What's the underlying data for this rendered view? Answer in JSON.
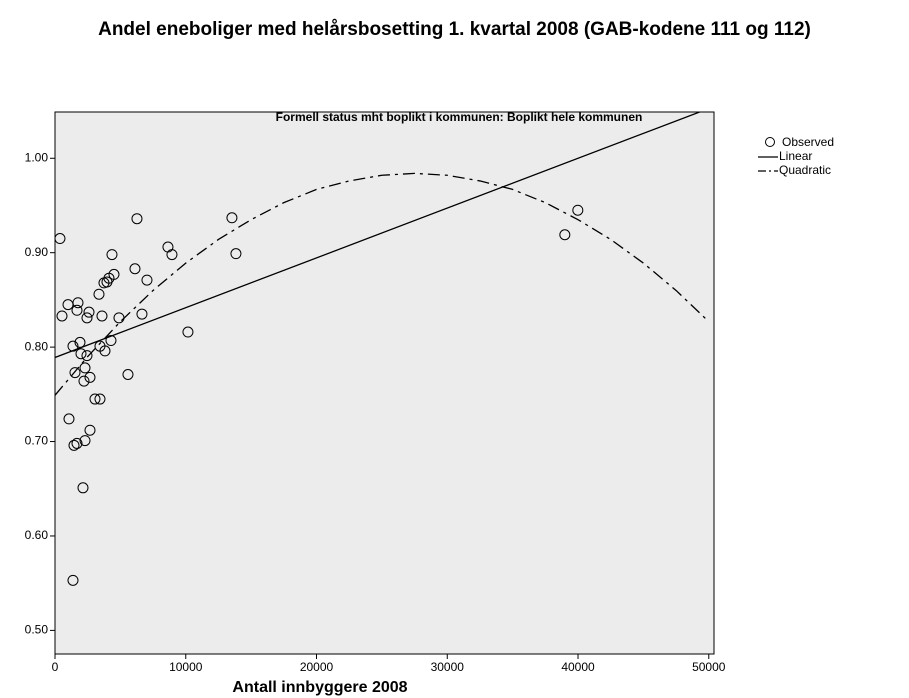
{
  "chart_data": {
    "type": "scatter",
    "title": "Andel eneboliger med helårsbosetting 1. kvartal 2008 (GAB-kodene 111 og 112)",
    "subtitle": "Formell status mht boplikt i kommunen: Boplikt hele kommunen",
    "x_label": "Antall innbyggere 2008",
    "xlim": [
      0,
      50400
    ],
    "ylim": [
      0.475,
      1.049
    ],
    "xticks": [
      0,
      10000,
      20000,
      30000,
      40000,
      50000
    ],
    "yticks": [
      {
        "value": 0.5,
        "label": "0.50"
      },
      {
        "value": 0.6,
        "label": "0.60"
      },
      {
        "value": 0.7,
        "label": "0.70"
      },
      {
        "value": 0.8,
        "label": "0.80"
      },
      {
        "value": 0.9,
        "label": "0.90"
      },
      {
        "value": 1.0,
        "label": "1.00"
      }
    ],
    "background": "#ececec",
    "series": [
      {
        "name": "Observed",
        "type": "scatter",
        "color": "#000000",
        "x": [
          380,
          535,
          994,
          1070,
          1376,
          1529,
          1453,
          1682,
          1758,
          1682,
          1911,
          1988,
          1376,
          2141,
          2217,
          2294,
          2294,
          2447,
          2447,
          2600,
          2676,
          2676,
          3058,
          3364,
          3440,
          3440,
          3593,
          3746,
          3823,
          3976,
          4128,
          4281,
          4358,
          4511,
          4893,
          5581,
          6116,
          6269,
          6651,
          7034,
          8639,
          8945,
          10168,
          13532,
          13838,
          38991,
          39985
        ],
        "values": [
          0.915,
          0.833,
          0.845,
          0.724,
          0.801,
          0.773,
          0.696,
          0.698,
          0.847,
          0.839,
          0.805,
          0.793,
          0.553,
          0.651,
          0.764,
          0.778,
          0.701,
          0.791,
          0.831,
          0.837,
          0.768,
          0.712,
          0.745,
          0.856,
          0.745,
          0.801,
          0.833,
          0.868,
          0.796,
          0.869,
          0.873,
          0.807,
          0.898,
          0.877,
          0.831,
          0.771,
          0.883,
          0.936,
          0.835,
          0.871,
          0.906,
          0.898,
          0.816,
          0.937,
          0.899,
          0.919,
          0.945
        ]
      },
      {
        "name": "Linear",
        "type": "line",
        "color": "#000000",
        "dash": "solid",
        "x": [
          0,
          49300
        ],
        "values": [
          0.789,
          1.049
        ]
      },
      {
        "name": "Quadratic",
        "type": "line",
        "color": "#000000",
        "dash": "dashdot",
        "x": [
          0,
          2500,
          5000,
          7500,
          10000,
          12500,
          15000,
          17500,
          20000,
          22500,
          25000,
          27500,
          30000,
          32500,
          35000,
          37500,
          40000,
          42500,
          45000,
          47500,
          50000
        ],
        "values": [
          0.749,
          0.79,
          0.827,
          0.86,
          0.889,
          0.914,
          0.935,
          0.953,
          0.967,
          0.976,
          0.982,
          0.984,
          0.982,
          0.976,
          0.967,
          0.953,
          0.935,
          0.914,
          0.889,
          0.86,
          0.827
        ]
      }
    ]
  }
}
